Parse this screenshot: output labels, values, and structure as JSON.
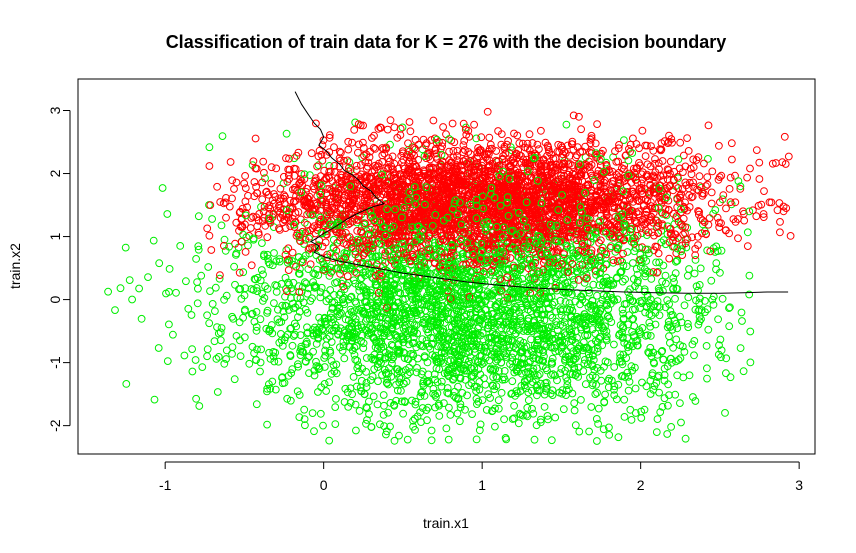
{
  "chart_data": {
    "type": "scatter",
    "title": "Classification of train data for K = 276 with the decision boundary",
    "xlabel": "train.x1",
    "ylabel": "train.x2",
    "xlim": [
      -1.55,
      3.1
    ],
    "ylim": [
      -2.45,
      3.5
    ],
    "xticks": [
      -1,
      0,
      1,
      2,
      3
    ],
    "yticks": [
      -2,
      -1,
      0,
      1,
      2,
      3
    ],
    "xtick_labels": [
      "-1",
      "0",
      "1",
      "2",
      "3"
    ],
    "ytick_labels": [
      "-2",
      "-1",
      "0",
      "1",
      "2",
      "3"
    ],
    "grid": false,
    "series": [
      {
        "color": "#ff0000",
        "marker": "open-circle",
        "center": [
          1.0,
          1.55
        ],
        "spread": [
          0.72,
          0.48
        ],
        "count": 3400,
        "x_range": [
          -0.75,
          2.95
        ],
        "y_range": [
          -0.6,
          3.35
        ]
      },
      {
        "color": "#00ee00",
        "marker": "open-circle",
        "center": [
          0.95,
          -0.1
        ],
        "spread": [
          0.75,
          0.95
        ],
        "count": 3400,
        "x_range": [
          -1.4,
          2.7
        ],
        "y_range": [
          -2.25,
          3.05
        ]
      }
    ],
    "decision_boundary": {
      "color": "#000000",
      "points": [
        [
          -0.18,
          3.3
        ],
        [
          -0.14,
          3.1
        ],
        [
          -0.1,
          2.95
        ],
        [
          -0.06,
          2.8
        ],
        [
          -0.02,
          2.7
        ],
        [
          0.0,
          2.58
        ],
        [
          -0.03,
          2.45
        ],
        [
          0.02,
          2.35
        ],
        [
          0.05,
          2.25
        ],
        [
          0.1,
          2.15
        ],
        [
          0.13,
          2.05
        ],
        [
          0.18,
          1.98
        ],
        [
          0.22,
          1.9
        ],
        [
          0.25,
          1.8
        ],
        [
          0.3,
          1.72
        ],
        [
          0.33,
          1.62
        ],
        [
          0.38,
          1.52
        ],
        [
          0.32,
          1.48
        ],
        [
          0.26,
          1.42
        ],
        [
          0.2,
          1.35
        ],
        [
          0.15,
          1.28
        ],
        [
          0.1,
          1.2
        ],
        [
          0.05,
          1.12
        ],
        [
          0.0,
          1.05
        ],
        [
          -0.04,
          0.98
        ],
        [
          -0.08,
          0.92
        ],
        [
          -0.03,
          0.85
        ],
        [
          -0.06,
          0.75
        ],
        [
          0.0,
          0.68
        ],
        [
          0.08,
          0.62
        ],
        [
          0.2,
          0.56
        ],
        [
          0.35,
          0.49
        ],
        [
          0.5,
          0.42
        ],
        [
          0.7,
          0.35
        ],
        [
          0.9,
          0.28
        ],
        [
          1.1,
          0.23
        ],
        [
          1.3,
          0.19
        ],
        [
          1.5,
          0.16
        ],
        [
          1.7,
          0.14
        ],
        [
          1.9,
          0.12
        ],
        [
          2.1,
          0.11
        ],
        [
          2.3,
          0.1
        ],
        [
          2.5,
          0.1
        ],
        [
          2.65,
          0.11
        ],
        [
          2.8,
          0.12
        ],
        [
          2.93,
          0.12
        ]
      ]
    }
  }
}
